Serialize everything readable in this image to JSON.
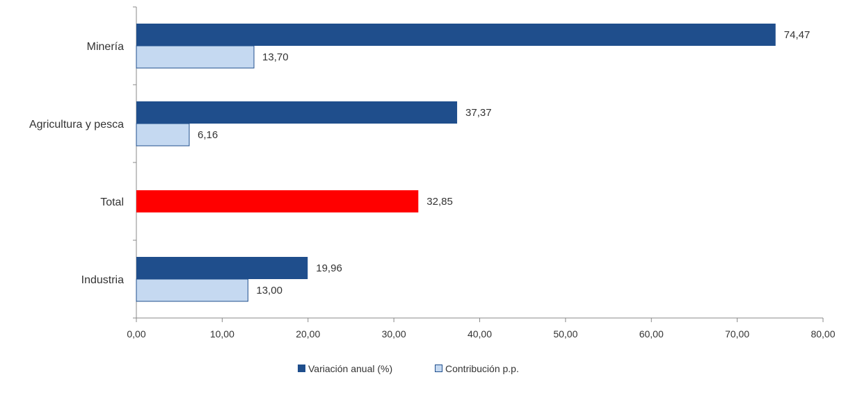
{
  "chart_data": {
    "type": "bar",
    "orientation": "horizontal",
    "categories": [
      "Minería",
      "Agricultura y pesca",
      "Total",
      "Industria"
    ],
    "series": [
      {
        "name": "Variación anual (%)",
        "color": "#1f4e8c",
        "values": [
          74.47,
          37.37,
          32.85,
          19.96
        ],
        "labels": [
          "74,47",
          "37,37",
          "32,85",
          "19,96"
        ]
      },
      {
        "name": "Contribución p.p.",
        "color": "#c5d9f1",
        "values": [
          13.7,
          6.16,
          null,
          13.0
        ],
        "labels": [
          "13,70",
          "6,16",
          "",
          "13,00"
        ]
      }
    ],
    "highlight": {
      "category": "Total",
      "color": "#ff0000"
    },
    "xlim": [
      0,
      80
    ],
    "xticks": [
      0,
      10,
      20,
      30,
      40,
      50,
      60,
      70,
      80
    ],
    "xtick_labels": [
      "0,00",
      "10,00",
      "20,00",
      "30,00",
      "40,00",
      "50,00",
      "60,00",
      "70,00",
      "80,00"
    ],
    "title": "",
    "xlabel": "",
    "ylabel": "",
    "grid": false,
    "legend_position": "bottom-center"
  }
}
